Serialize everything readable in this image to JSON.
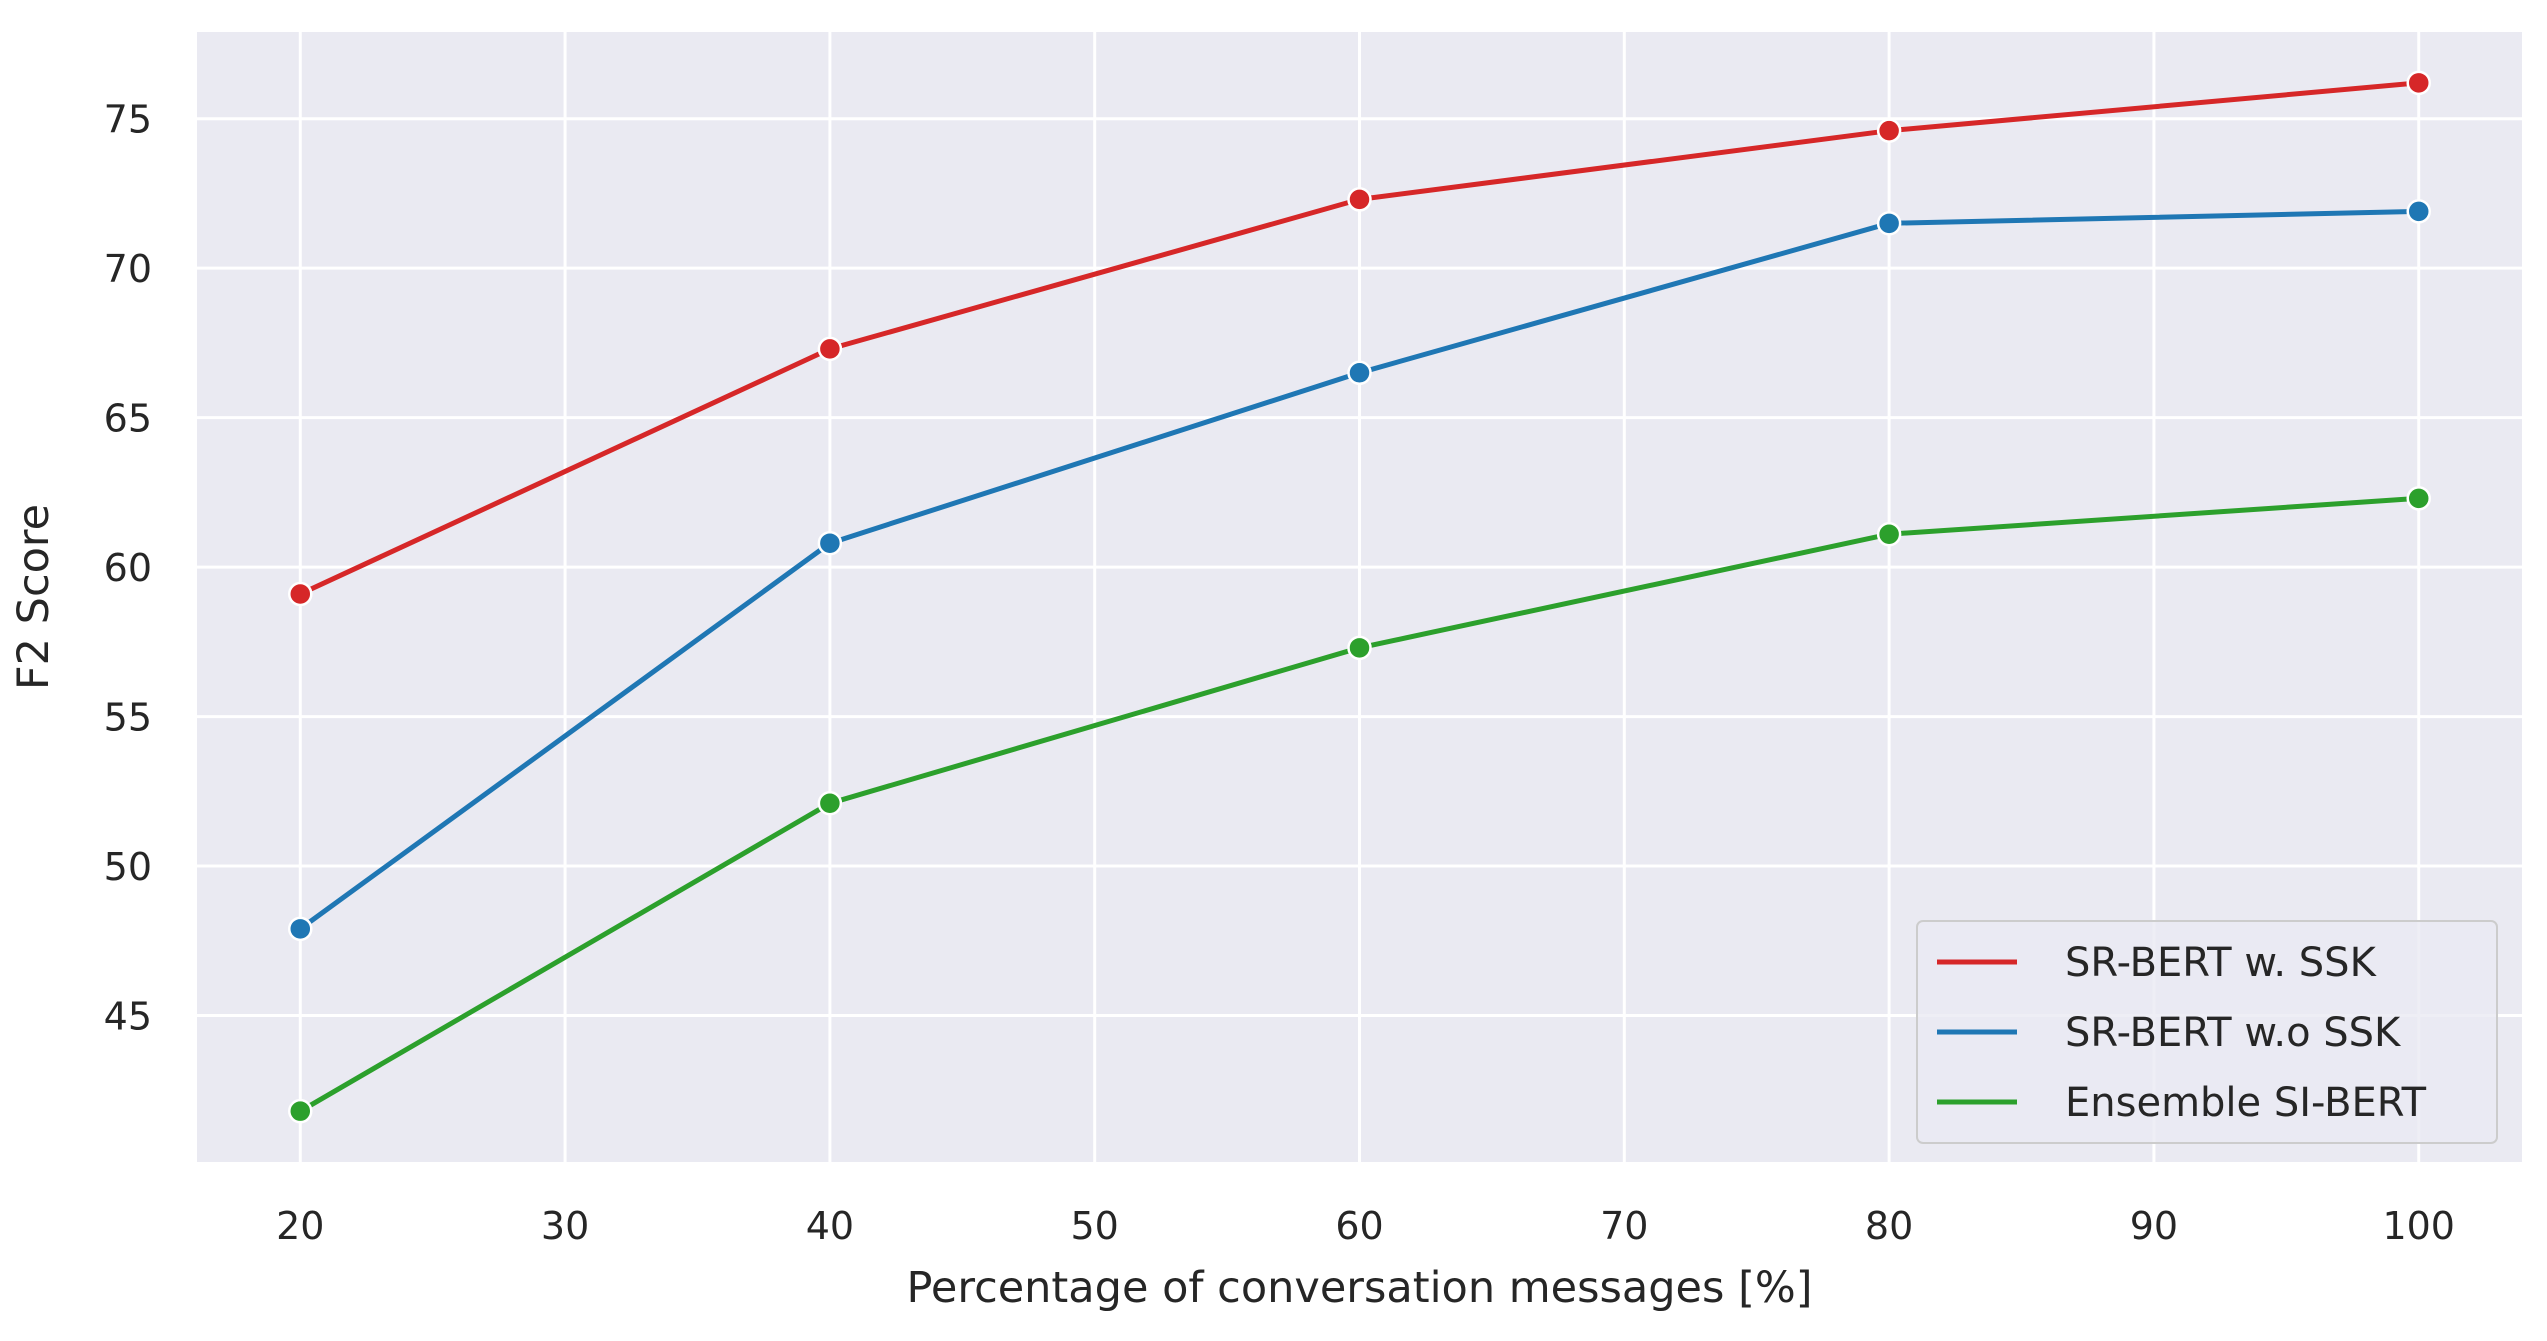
{
  "chart_data": {
    "type": "line",
    "title": "",
    "xlabel": "Percentage of conversation messages [%]",
    "ylabel": "F2 Score",
    "x": [
      20,
      40,
      60,
      80,
      100
    ],
    "xlim": [
      16.1,
      103.9
    ],
    "ylim": [
      40.1,
      77.9
    ],
    "xticks": [
      20,
      30,
      40,
      50,
      60,
      70,
      80,
      90,
      100
    ],
    "yticks": [
      45,
      50,
      55,
      60,
      65,
      70,
      75
    ],
    "grid": true,
    "legend_position": "lower-right",
    "background": "#eaeaf2",
    "series": [
      {
        "name": "SR-BERT w. SSK",
        "color": "#d62728",
        "values": [
          59.1,
          67.3,
          72.3,
          74.6,
          76.2
        ]
      },
      {
        "name": "SR-BERT w.o SSK",
        "color": "#1f77b4",
        "values": [
          47.9,
          60.8,
          66.5,
          71.5,
          71.9
        ]
      },
      {
        "name": "Ensemble SI-BERT",
        "color": "#2ca02c",
        "values": [
          41.8,
          52.1,
          57.3,
          61.1,
          62.3
        ]
      }
    ]
  }
}
